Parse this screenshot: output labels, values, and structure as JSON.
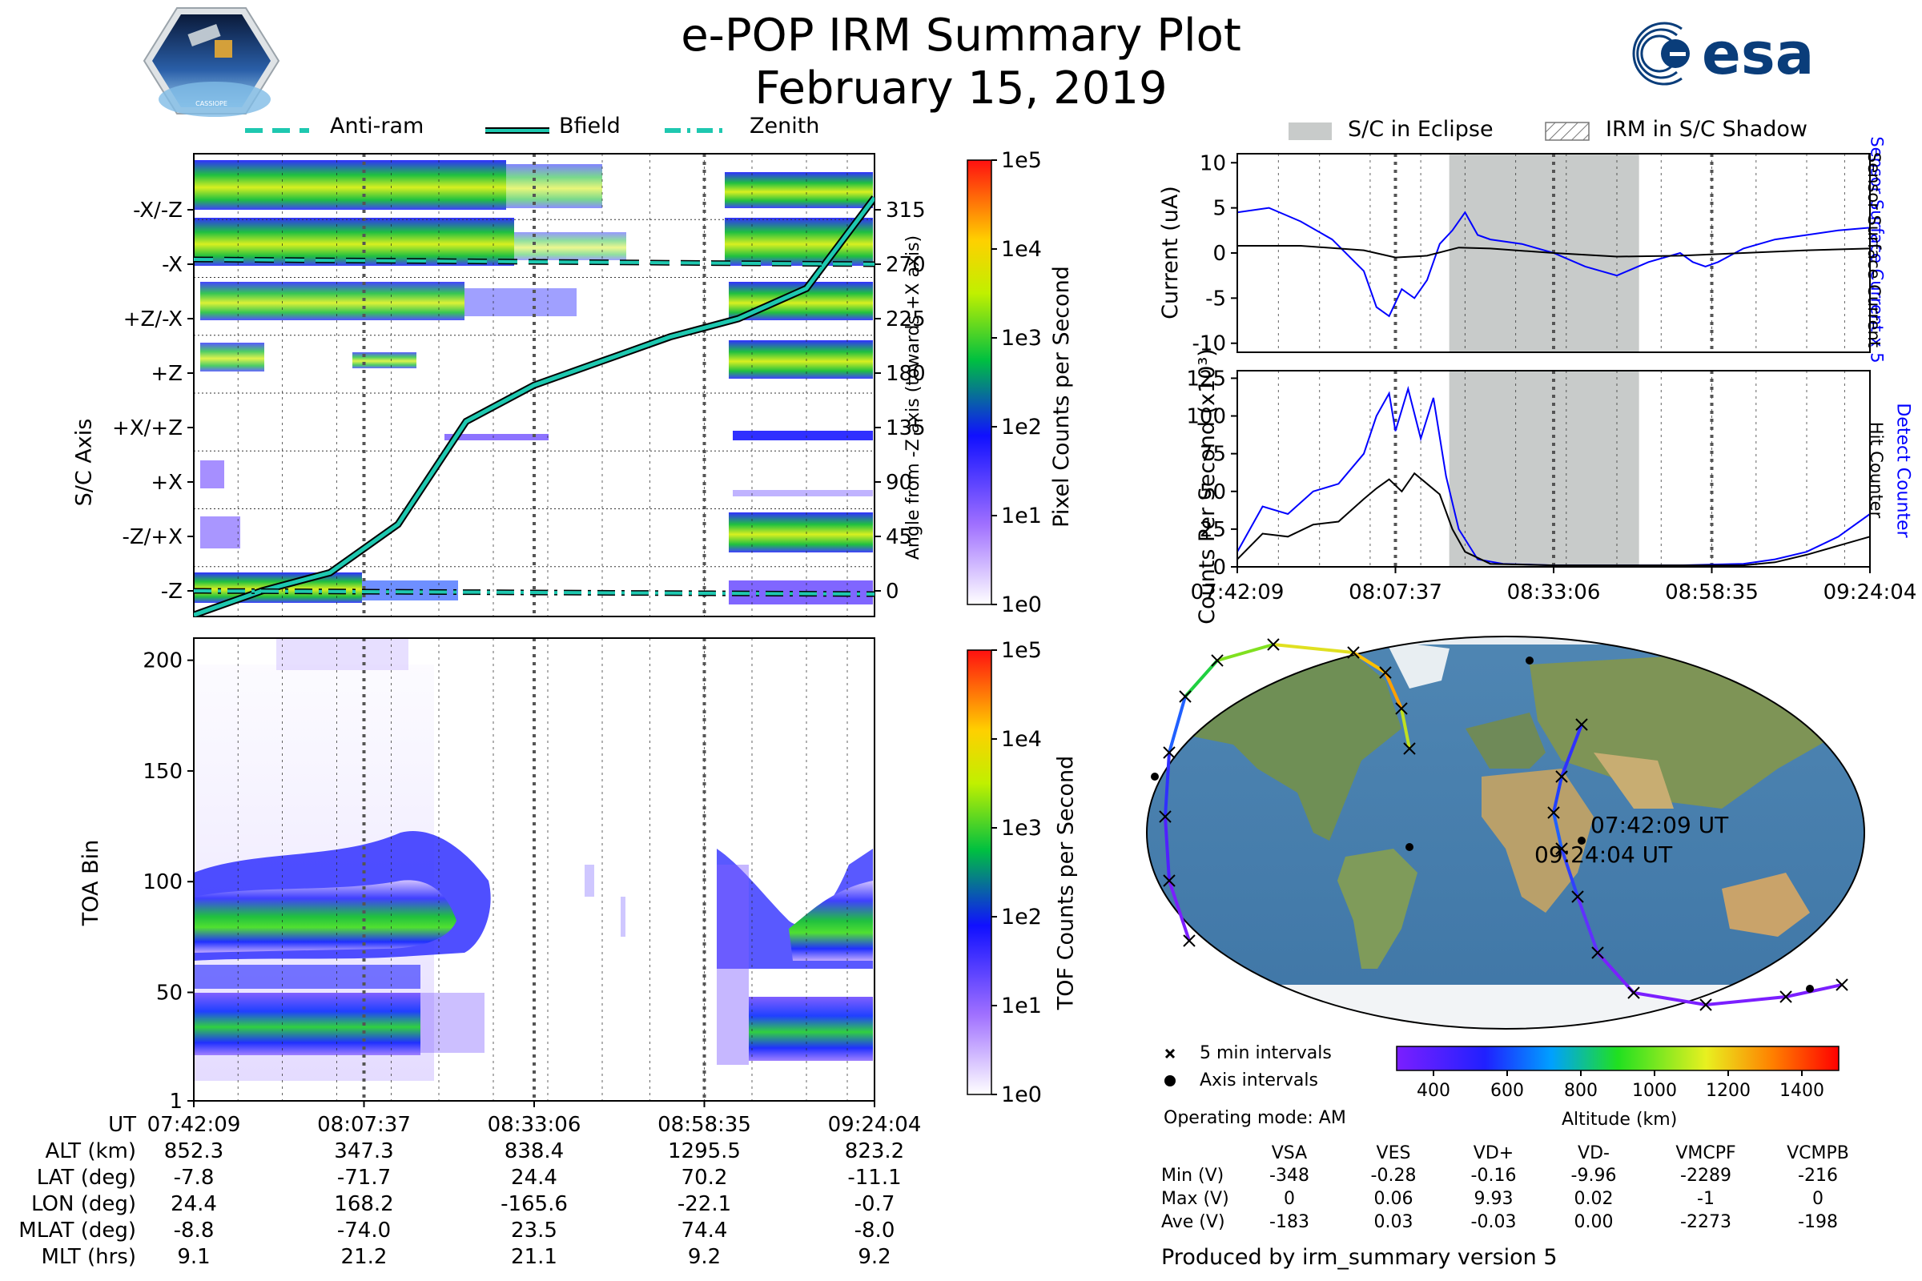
{
  "header": {
    "title": "e-POP IRM Summary Plot",
    "date": "February 15, 2019",
    "left_logo_text": "CASSIOPE",
    "right_logo_text": "esa"
  },
  "colors": {
    "cyan": "#1ec8b0",
    "blue": "#0000ff",
    "eclipse": "#c8cbca"
  },
  "top_legend": {
    "anti_ram": "Anti-ram",
    "bfield": "Bfield",
    "zenith": "Zenith"
  },
  "right_legend": {
    "eclipse": "S/C in Eclipse",
    "shadow": "IRM in S/C Shadow"
  },
  "chart_data": [
    {
      "type": "heatmap",
      "name": "axis_panel",
      "ylabel": "S/C Axis",
      "yticklabels": [
        "-X/-Z",
        "-X",
        "+Z/-X",
        "+Z",
        "+X/+Z",
        "+X",
        "-Z/+X",
        "-Z"
      ],
      "right_ylabel": "Angle from -Z axis (towards +X axis)",
      "right_yticks": [
        315,
        270,
        225,
        180,
        135,
        90,
        45,
        0
      ],
      "colorbar_label": "Pixel Counts per Second",
      "colorbar_ticks": [
        "1e5",
        "1e4",
        "1e3",
        "1e2",
        "1e1",
        "1e0"
      ],
      "x_range": [
        "07:42:09",
        "09:24:04"
      ],
      "series": [
        {
          "name": "Bfield",
          "x_frac": [
            0.0,
            0.1,
            0.2,
            0.3,
            0.4,
            0.5,
            0.6,
            0.7,
            0.8,
            0.9,
            1.0
          ],
          "values": [
            -20,
            0,
            15,
            55,
            140,
            170,
            190,
            210,
            225,
            250,
            325
          ]
        },
        {
          "name": "Anti-ram",
          "values": [
            270
          ]
        },
        {
          "name": "Zenith",
          "values": [
            0
          ]
        }
      ]
    },
    {
      "type": "heatmap",
      "name": "toa_panel",
      "ylabel": "TOA Bin",
      "yticks": [
        1,
        50,
        100,
        150,
        200
      ],
      "ylim": [
        1,
        210
      ],
      "colorbar_label": "TOF Counts per Second",
      "colorbar_ticks": [
        "1e5",
        "1e4",
        "1e3",
        "1e2",
        "1e1",
        "1e0"
      ],
      "x_range": [
        "07:42:09",
        "09:24:04"
      ]
    },
    {
      "type": "line",
      "name": "current_panel",
      "ylabel": "Current (uA)",
      "right_label_blue": "Sensor Surface Current x 5",
      "right_label_black": "Sensor Surface Current",
      "yticks": [
        10,
        5,
        0,
        -5,
        -10
      ],
      "ylim": [
        -11,
        11
      ],
      "eclipse_range_frac": [
        0.335,
        0.635
      ],
      "series": [
        {
          "name": "Sensor Surface Current x 5",
          "x_frac": [
            0.0,
            0.05,
            0.1,
            0.15,
            0.2,
            0.22,
            0.24,
            0.26,
            0.28,
            0.3,
            0.32,
            0.34,
            0.36,
            0.38,
            0.4,
            0.45,
            0.5,
            0.55,
            0.6,
            0.65,
            0.7,
            0.72,
            0.74,
            0.76,
            0.8,
            0.85,
            0.9,
            0.95,
            1.0
          ],
          "values": [
            4.5,
            5.0,
            3.5,
            1.5,
            -2.0,
            -6.0,
            -7.0,
            -4.0,
            -5.0,
            -3.0,
            1.0,
            2.5,
            4.5,
            2.0,
            1.5,
            1.0,
            0.0,
            -1.5,
            -2.5,
            -1.0,
            0.0,
            -1.0,
            -1.5,
            -1.0,
            0.5,
            1.5,
            2.0,
            2.5,
            2.8
          ]
        },
        {
          "name": "Sensor Surface Current",
          "x_frac": [
            0.0,
            0.1,
            0.2,
            0.25,
            0.3,
            0.35,
            0.4,
            0.5,
            0.6,
            0.7,
            0.8,
            0.9,
            1.0
          ],
          "values": [
            0.8,
            0.8,
            0.3,
            -0.5,
            -0.3,
            0.6,
            0.5,
            0.0,
            -0.4,
            -0.3,
            0.0,
            0.3,
            0.5
          ]
        }
      ]
    },
    {
      "type": "line",
      "name": "counts_panel",
      "ylabel": "Counts Per Second (x10³)",
      "right_label_blue": "Detect Counter",
      "right_label_black": "Hit Counter",
      "yticks": [
        125,
        100,
        75,
        50,
        25,
        0
      ],
      "ylim": [
        0,
        130
      ],
      "xticklabels": [
        "07:42:09",
        "08:07:37",
        "08:33:06",
        "08:58:35",
        "09:24:04"
      ],
      "eclipse_range_frac": [
        0.335,
        0.635
      ],
      "series": [
        {
          "name": "Detect Counter",
          "x_frac": [
            0.0,
            0.04,
            0.08,
            0.12,
            0.16,
            0.2,
            0.22,
            0.24,
            0.25,
            0.27,
            0.29,
            0.31,
            0.33,
            0.35,
            0.38,
            0.42,
            0.5,
            0.6,
            0.7,
            0.8,
            0.85,
            0.9,
            0.95,
            1.0
          ],
          "values": [
            10,
            40,
            35,
            50,
            55,
            75,
            100,
            115,
            90,
            118,
            85,
            112,
            60,
            25,
            5,
            2,
            1,
            1,
            1,
            2,
            5,
            10,
            20,
            35
          ]
        },
        {
          "name": "Hit Counter",
          "x_frac": [
            0.0,
            0.04,
            0.08,
            0.12,
            0.16,
            0.2,
            0.22,
            0.24,
            0.26,
            0.28,
            0.3,
            0.32,
            0.34,
            0.36,
            0.4,
            0.5,
            0.6,
            0.7,
            0.8,
            0.85,
            0.9,
            0.95,
            1.0
          ],
          "values": [
            5,
            22,
            20,
            28,
            30,
            45,
            52,
            58,
            50,
            62,
            55,
            48,
            25,
            10,
            2,
            1,
            1,
            1,
            1,
            3,
            8,
            14,
            20
          ]
        }
      ]
    }
  ],
  "ephemeris": {
    "row_labels": [
      "UT",
      "ALT (km)",
      "LAT (deg)",
      "LON (deg)",
      "MLAT (deg)",
      "MLT (hrs)"
    ],
    "columns": [
      [
        "07:42:09",
        "852.3",
        "-7.8",
        "24.4",
        "-8.8",
        "9.1"
      ],
      [
        "08:07:37",
        "347.3",
        "-71.7",
        "168.2",
        "-74.0",
        "21.2"
      ],
      [
        "08:33:06",
        "838.4",
        "24.4",
        "-165.6",
        "23.5",
        "21.1"
      ],
      [
        "08:58:35",
        "1295.5",
        "70.2",
        "-22.1",
        "74.4",
        "9.2"
      ],
      [
        "09:24:04",
        "823.2",
        "-11.1",
        "-0.7",
        "-8.0",
        "9.2"
      ]
    ]
  },
  "map": {
    "start_label": "07:42:09 UT",
    "end_label": "09:24:04 UT",
    "legend_5min": "5 min intervals",
    "legend_axis": "Axis intervals",
    "colorbar_ticks": [
      "400",
      "600",
      "800",
      "1000",
      "1200",
      "1400"
    ],
    "colorbar_label": "Altitude (km)"
  },
  "operating_mode": "Operating mode: AM",
  "voltage_table": {
    "headers": [
      "VSA",
      "VES",
      "VD+",
      "VD-",
      "VMCPF",
      "VCMPB"
    ],
    "rows": [
      {
        "label": "Min (V)",
        "values": [
          "-348",
          "-0.28",
          "-0.16",
          "-9.96",
          "-2289",
          "-216"
        ]
      },
      {
        "label": "Max (V)",
        "values": [
          "0",
          "0.06",
          "9.93",
          "0.02",
          "-1",
          "0"
        ]
      },
      {
        "label": "Ave (V)",
        "values": [
          "-183",
          "0.03",
          "-0.03",
          "0.00",
          "-2273",
          "-198"
        ]
      }
    ]
  },
  "footer": "Produced by irm_summary version 5"
}
